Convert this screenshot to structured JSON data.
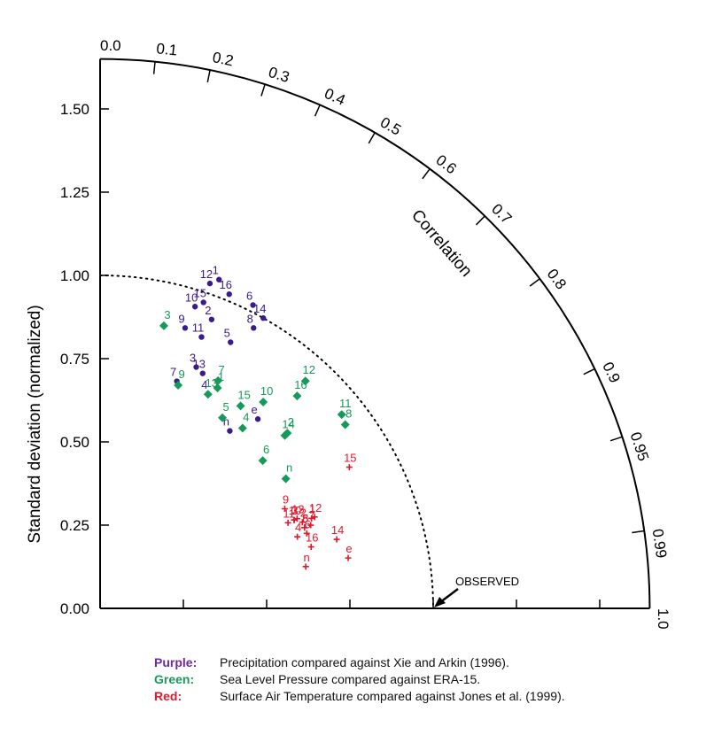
{
  "chart_data": {
    "type": "scatter",
    "subtype": "taylor-diagram",
    "ylabel": "Standard deviation (normalized)",
    "arc_label": "Correlation",
    "reference_label": "OBSERVED",
    "std_ticks": [
      0.0,
      0.25,
      0.5,
      0.75,
      1.0,
      1.25,
      1.5
    ],
    "std_tick_labels": [
      "0.00",
      "0.25",
      "0.50",
      "0.75",
      "1.00",
      "1.25",
      "1.50"
    ],
    "std_max": 1.65,
    "correlation_ticks": [
      0.0,
      0.1,
      0.2,
      0.3,
      0.4,
      0.5,
      0.6,
      0.7,
      0.8,
      0.9,
      0.95,
      0.99,
      1.0
    ],
    "correlation_tick_labels": [
      "0.0",
      "0.1",
      "0.2",
      "0.3",
      "0.4",
      "0.5",
      "0.6",
      "0.7",
      "0.8",
      "0.9",
      "0.95",
      "0.99",
      "1.0"
    ],
    "reference_std": 1.0,
    "series": [
      {
        "name": "Purple",
        "color": "#3b1a8a",
        "marker": "circle",
        "points": [
          {
            "label": "1",
            "corr": 0.34,
            "std": 1.05
          },
          {
            "label": "2",
            "corr": 0.36,
            "std": 0.93
          },
          {
            "label": "3",
            "corr": 0.37,
            "std": 0.78
          },
          {
            "label": "4",
            "corr": 0.45,
            "std": 0.72
          },
          {
            "label": "5",
            "corr": 0.44,
            "std": 0.89
          },
          {
            "label": "6",
            "corr": 0.45,
            "std": 1.02
          },
          {
            "label": "7",
            "corr": 0.32,
            "std": 0.72
          },
          {
            "label": "8",
            "corr": 0.48,
            "std": 0.96
          },
          {
            "label": "9",
            "corr": 0.29,
            "std": 0.88
          },
          {
            "label": "10",
            "corr": 0.3,
            "std": 0.95
          },
          {
            "label": "11",
            "corr": 0.35,
            "std": 0.87
          },
          {
            "label": "12",
            "corr": 0.32,
            "std": 1.03
          },
          {
            "label": "13",
            "corr": 0.4,
            "std": 0.77
          },
          {
            "label": "14",
            "corr": 0.49,
            "std": 1.0
          },
          {
            "label": "15",
            "corr": 0.32,
            "std": 0.97
          },
          {
            "label": "16",
            "corr": 0.38,
            "std": 1.02
          },
          {
            "label": "n",
            "corr": 0.59,
            "std": 0.66
          },
          {
            "label": "e",
            "corr": 0.64,
            "std": 0.74
          }
        ]
      },
      {
        "name": "Green",
        "color": "#159a5a",
        "marker": "diamond",
        "points": [
          {
            "label": "1",
            "corr": 0.47,
            "std": 0.75
          },
          {
            "label": "2",
            "corr": 0.73,
            "std": 0.77
          },
          {
            "label": "3",
            "corr": 0.22,
            "std": 0.87
          },
          {
            "label": "4",
            "corr": 0.62,
            "std": 0.69
          },
          {
            "label": "5",
            "corr": 0.54,
            "std": 0.68
          },
          {
            "label": "6",
            "corr": 0.74,
            "std": 0.66
          },
          {
            "label": "7",
            "corr": 0.46,
            "std": 0.77
          },
          {
            "label": "8",
            "corr": 0.8,
            "std": 0.92
          },
          {
            "label": "9",
            "corr": 0.33,
            "std": 0.71
          },
          {
            "label": "10",
            "corr": 0.62,
            "std": 0.79
          },
          {
            "label": "11",
            "corr": 0.78,
            "std": 0.93
          },
          {
            "label": "12",
            "corr": 0.67,
            "std": 0.92
          },
          {
            "label": "13",
            "corr": 0.45,
            "std": 0.72
          },
          {
            "label": "14",
            "corr": 0.73,
            "std": 0.76
          },
          {
            "label": "15",
            "corr": 0.57,
            "std": 0.74
          },
          {
            "label": "16",
            "corr": 0.68,
            "std": 0.87
          },
          {
            "label": "n",
            "corr": 0.82,
            "std": 0.68
          }
        ]
      },
      {
        "name": "Red",
        "color": "#e0182b",
        "marker": "plus",
        "points": [
          {
            "label": "1",
            "corr": 0.92,
            "std": 0.69
          },
          {
            "label": "2",
            "corr": 0.92,
            "std": 0.66
          },
          {
            "label": "3",
            "corr": 0.91,
            "std": 0.64
          },
          {
            "label": "4",
            "corr": 0.94,
            "std": 0.63
          },
          {
            "label": "5",
            "corr": 0.93,
            "std": 0.66
          },
          {
            "label": "6",
            "corr": 0.94,
            "std": 0.66
          },
          {
            "label": "7",
            "corr": 0.93,
            "std": 0.68
          },
          {
            "label": "8",
            "corr": 0.93,
            "std": 0.66
          },
          {
            "label": "9",
            "corr": 0.88,
            "std": 0.63
          },
          {
            "label": "10",
            "corr": 0.91,
            "std": 0.64
          },
          {
            "label": "11",
            "corr": 0.91,
            "std": 0.62
          },
          {
            "label": "12",
            "corr": 0.92,
            "std": 0.7
          },
          {
            "label": "13",
            "corr": 0.91,
            "std": 0.65
          },
          {
            "label": "14",
            "corr": 0.96,
            "std": 0.74
          },
          {
            "label": "15",
            "corr": 0.87,
            "std": 0.86
          },
          {
            "label": "16",
            "corr": 0.96,
            "std": 0.66
          },
          {
            "label": "n",
            "corr": 0.98,
            "std": 0.63
          },
          {
            "label": "e",
            "corr": 0.98,
            "std": 0.76
          }
        ]
      }
    ]
  },
  "legend": [
    {
      "key": "Purple:",
      "text": "Precipitation compared against Xie and Arkin (1996).",
      "color": "#6a2a9a"
    },
    {
      "key": "Green:",
      "text": "Sea Level Pressure compared against ERA-15.",
      "color": "#159a5a"
    },
    {
      "key": "Red:",
      "text": "Surface Air Temperature compared against Jones et al. (1999).",
      "color": "#e0182b"
    }
  ]
}
